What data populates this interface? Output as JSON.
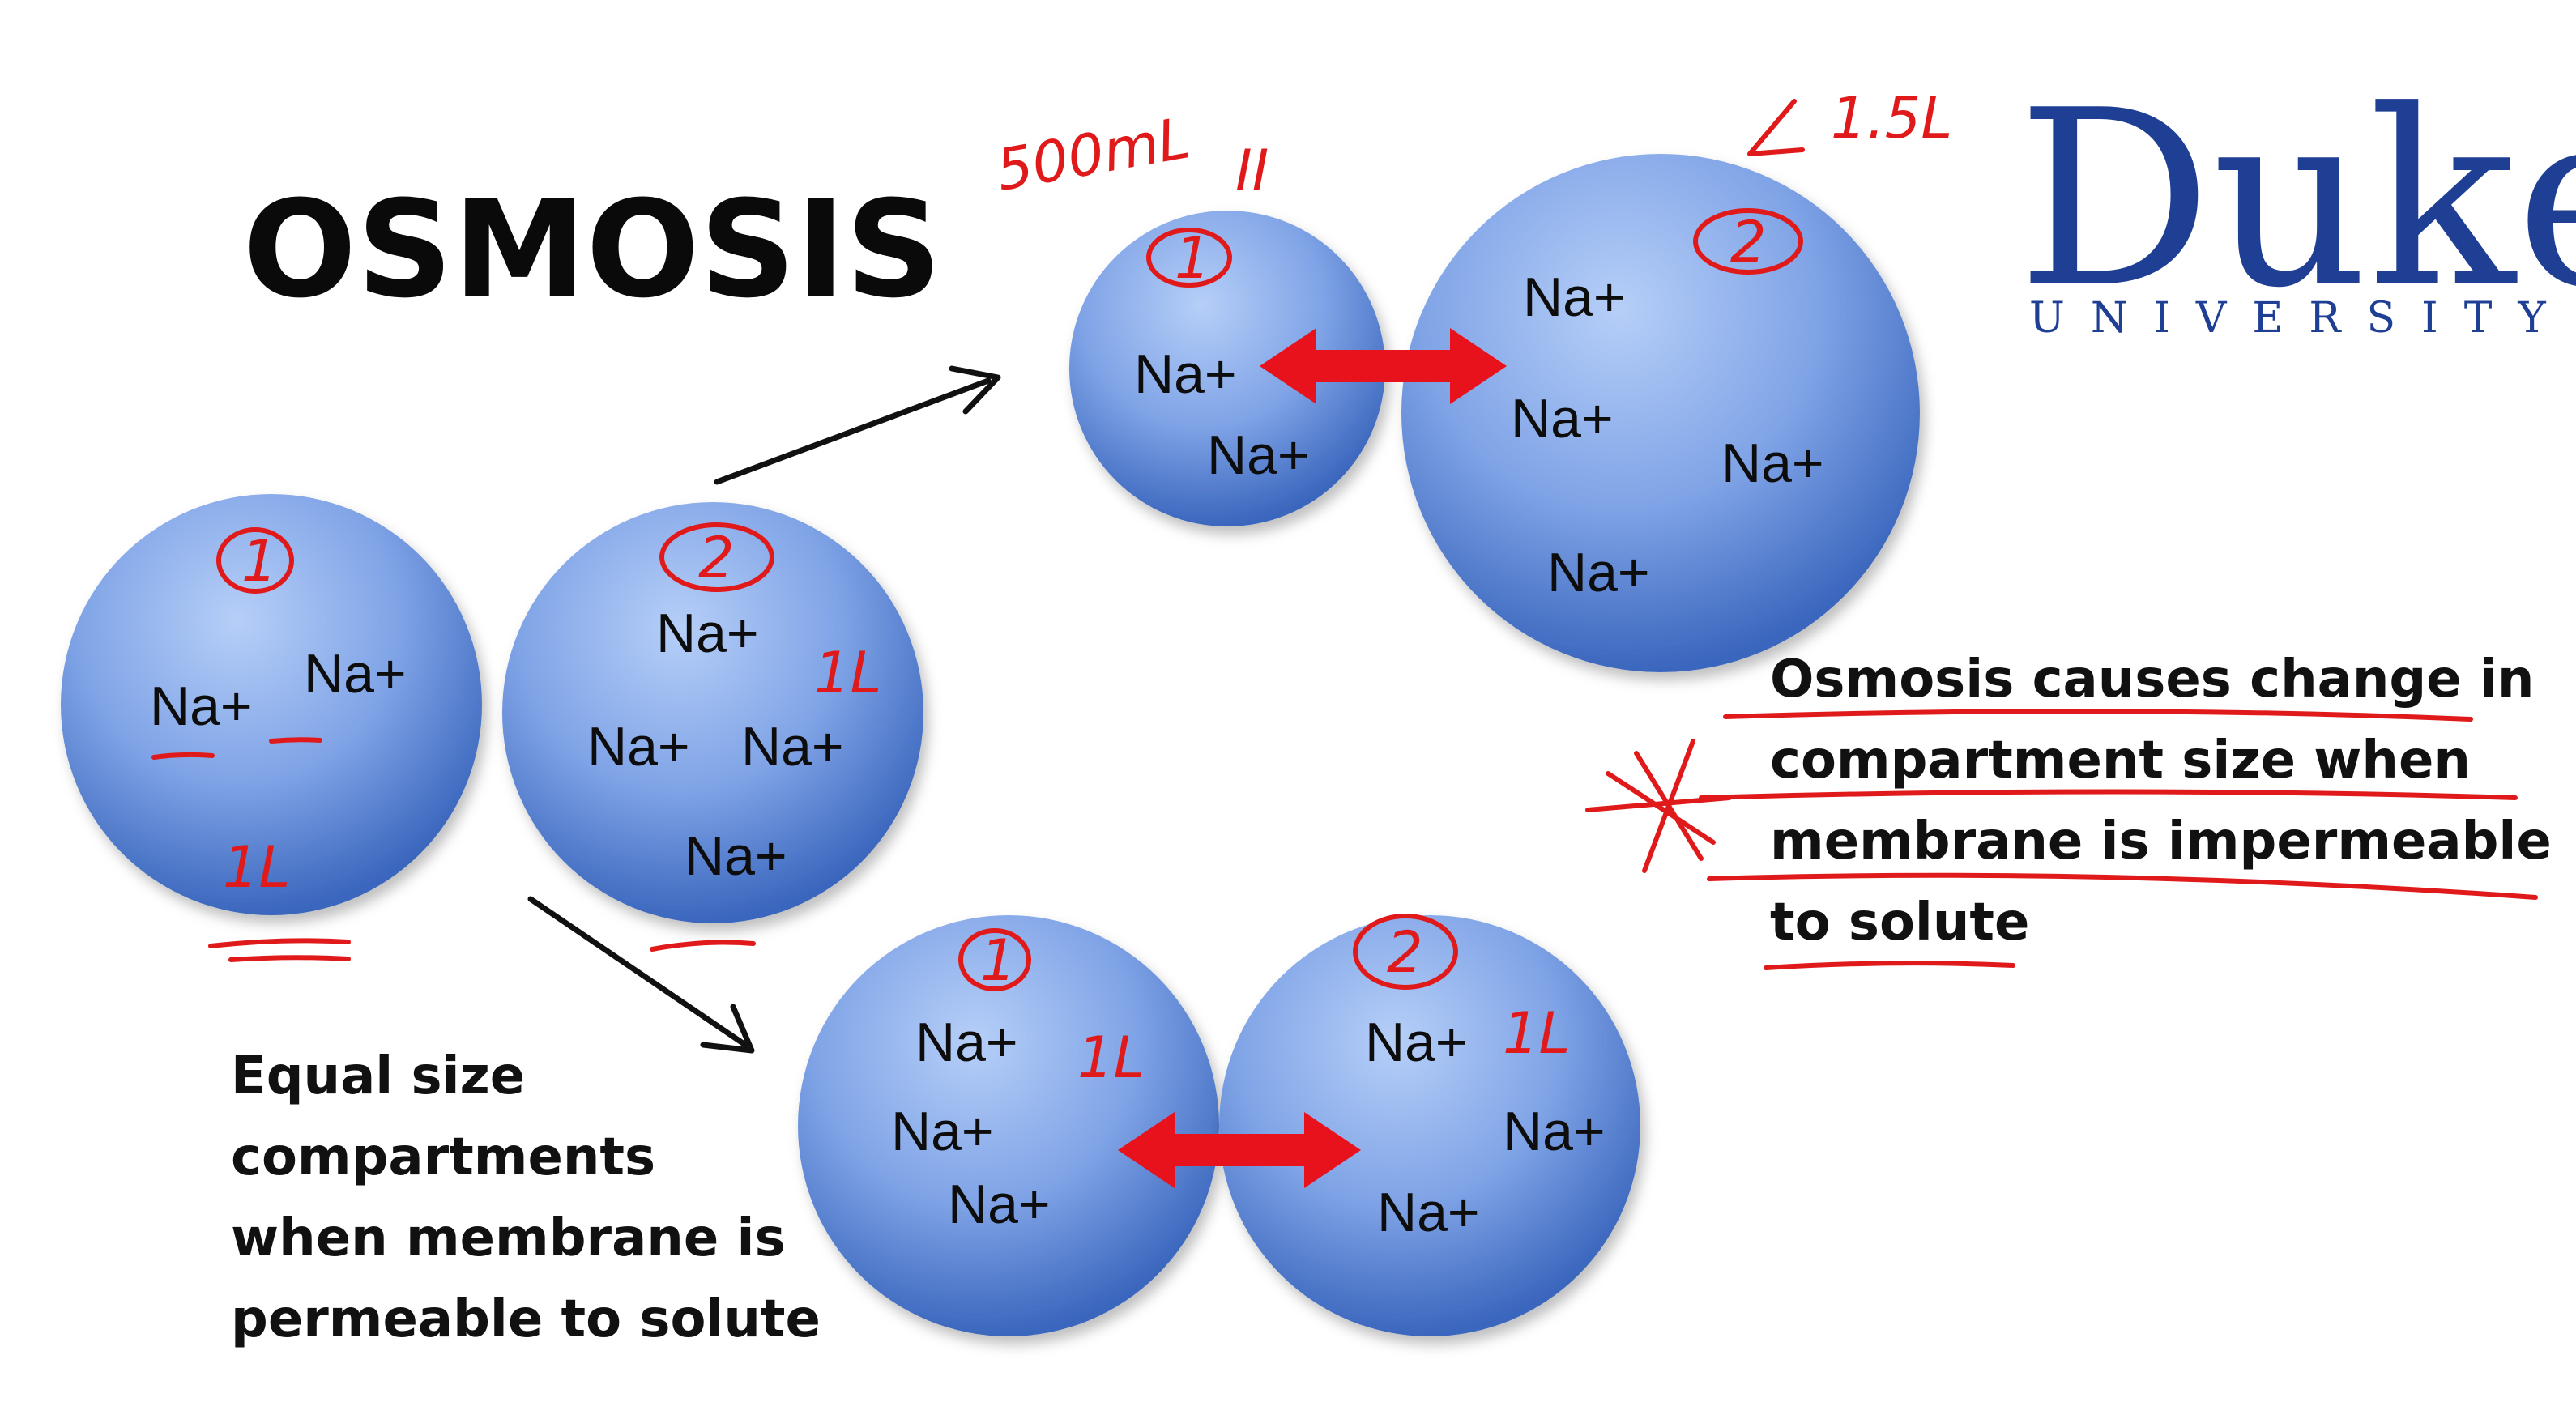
{
  "title": "OSMOSIS",
  "logo": {
    "wordmark": "Duke",
    "subtitle": "UNIVERSITY",
    "color": "#1f3f95"
  },
  "caption_left": [
    "Equal size",
    "compartments",
    "when membrane is",
    "permeable to solute"
  ],
  "caption_right": [
    "Osmosis causes change in",
    "compartment size when",
    "membrane is impermeable",
    "to solute"
  ],
  "ion_label": "Na+",
  "annotations": {
    "compartment_1_label": "1",
    "compartment_2_label": "2",
    "volume_1L": "1L",
    "top_left_volume": "500mL",
    "top_left_note": "II",
    "top_right_volume": "1.5L"
  },
  "colors": {
    "sphere_light": "#a9c4f5",
    "sphere_dark": "#3f6fc4",
    "arrow_red": "#e8121c",
    "ink_red": "#e01a1a"
  }
}
